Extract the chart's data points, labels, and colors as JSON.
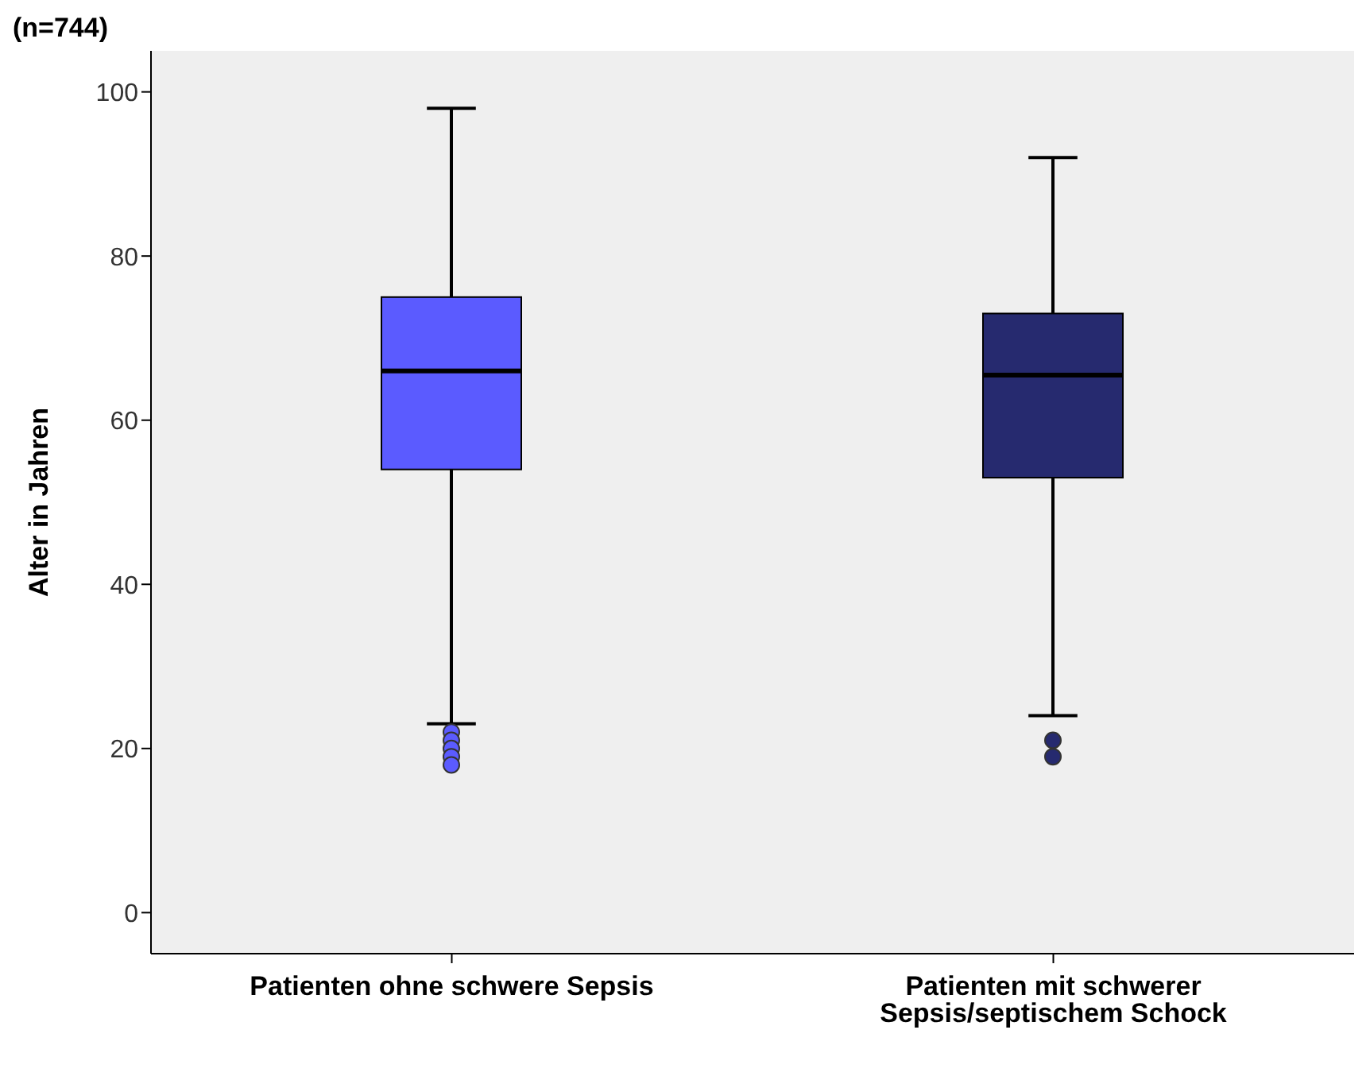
{
  "chart_data": {
    "type": "box",
    "title": "(n=744)",
    "ylabel": "Alter in Jahren",
    "categories": [
      "Patienten ohne schwere Sepsis",
      "Patienten mit schwerer Sepsis/septischem Schock"
    ],
    "colors": [
      "#5b5bff",
      "#262a6f"
    ],
    "boxes": [
      {
        "low": 23,
        "q1": 54,
        "median": 66,
        "q3": 75,
        "high": 98,
        "outliers": [
          22,
          21,
          20,
          19,
          18
        ]
      },
      {
        "low": 24,
        "q1": 53,
        "median": 65.5,
        "q3": 73,
        "high": 92,
        "outliers": [
          21,
          19
        ]
      }
    ],
    "ylim": [
      -5,
      105
    ],
    "yticks": [
      0,
      20,
      40,
      60,
      80,
      100
    ],
    "grid": false,
    "legend": false
  }
}
